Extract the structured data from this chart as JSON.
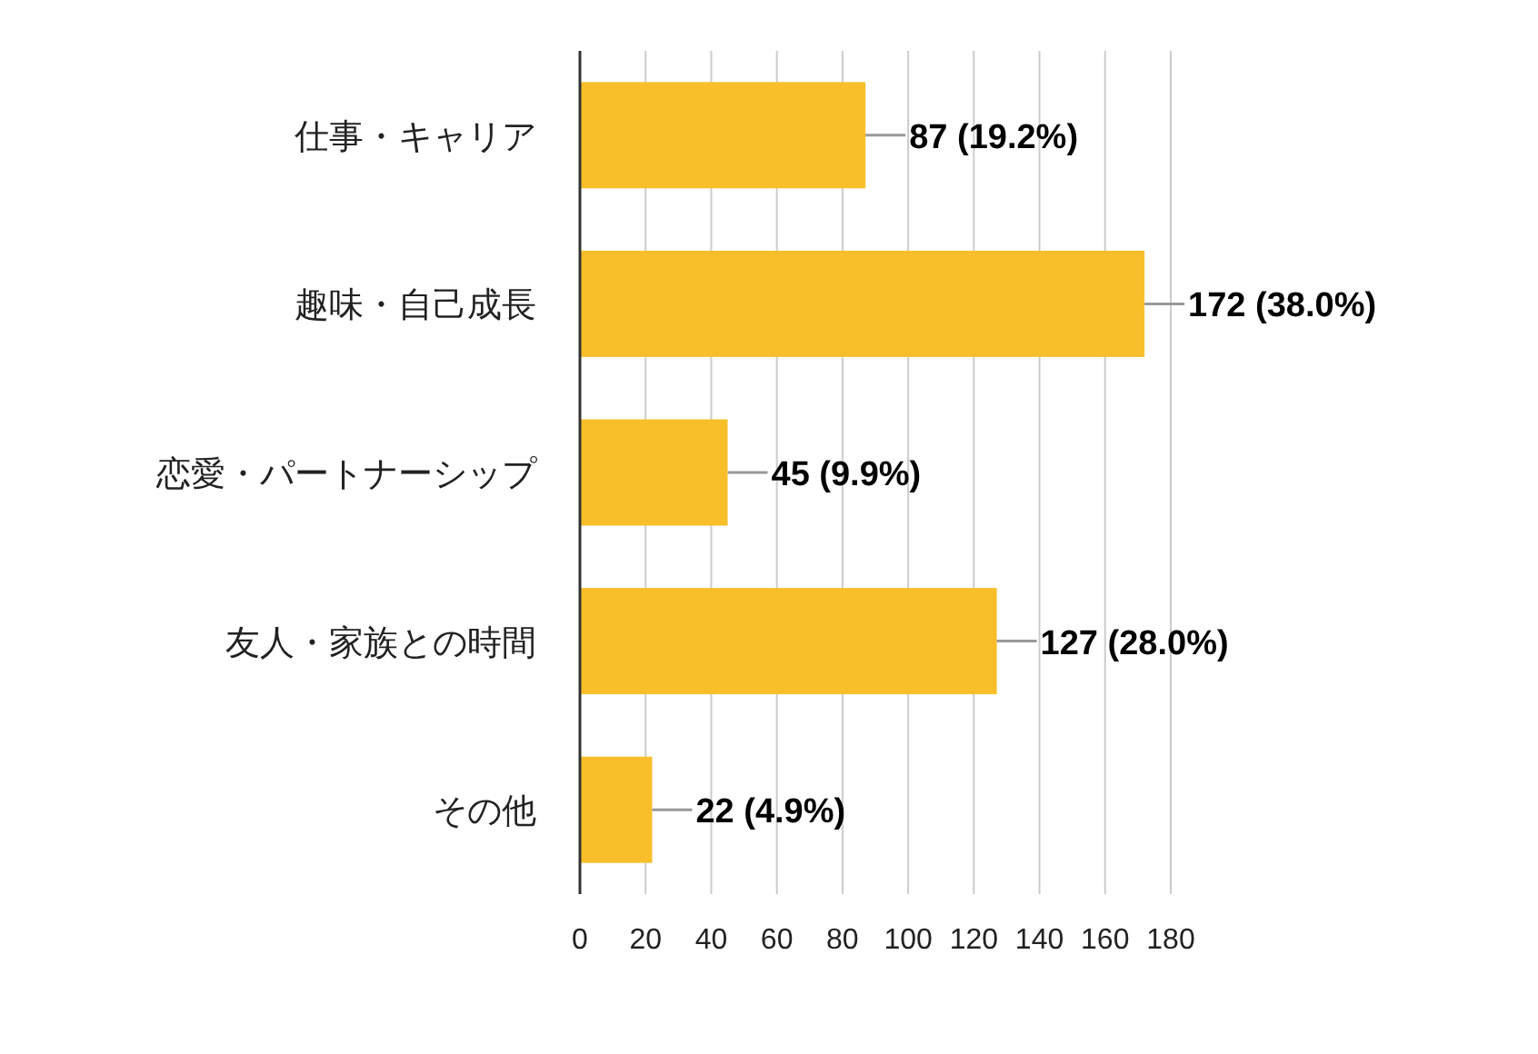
{
  "chart_data": {
    "type": "bar",
    "orientation": "horizontal",
    "categories": [
      "仕事・キャリア",
      "趣味・自己成長",
      "恋愛・パートナーシップ",
      "友人・家族との時間",
      "その他"
    ],
    "values": [
      87,
      172,
      45,
      127,
      22
    ],
    "value_labels": [
      "87 (19.2%)",
      "172 (38.0%)",
      "45 (9.9%)",
      "127 (28.0%)",
      "22 (4.9%)"
    ],
    "color": "#f9bf2a",
    "xlim": [
      0,
      180
    ],
    "xticks": [
      0,
      20,
      40,
      60,
      80,
      100,
      120,
      140,
      160,
      180
    ],
    "grid": "x"
  }
}
